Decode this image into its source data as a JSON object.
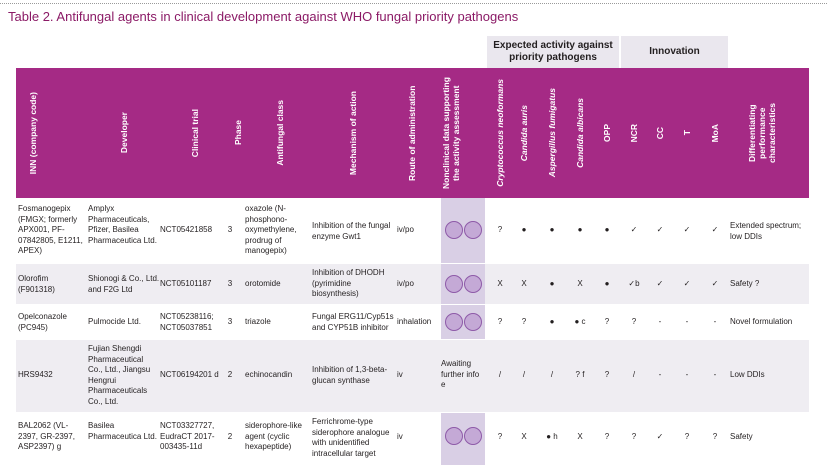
{
  "caption": "Table 2. Antifungal agents in clinical development against WHO fungal priority pathogens",
  "groups": {
    "expected": "Expected activity against priority pathogens",
    "innovation": "Innovation"
  },
  "columns": [
    "INN (company code)",
    "Developer",
    "Clinical trial",
    "Phase",
    "Antifungal class",
    "Mechanism of action",
    "Route of administration",
    "Nonclinical data supporting the activity assessment",
    "Cryptococcus neoformans",
    "Candida auris",
    "Aspergillus fumigatus",
    "Candida albicans",
    "OPP",
    "NCR",
    "CC",
    "T",
    "MoA",
    "Differentiating performance characteristics"
  ],
  "rows": [
    {
      "inn": "Fosmanogepix (FMGX; formerly APX001, PF-07842805, E1211, APEX)",
      "developer": "Amplyx Pharmaceuticals, Pfizer, Basilea Pharmaceutica Ltd.",
      "trial": "NCT05421858",
      "phase": "3",
      "class": "oxazole (N-phosphono-oxymethylene, prodrug of manogepix)",
      "moa": "Inhibition of the fungal enzyme Gwt1",
      "route": "iv/po",
      "nonclinical": "",
      "crypto": "?",
      "auris": "●",
      "asper": "●",
      "albicans": "●",
      "opp": "●",
      "ncr": "✓",
      "cc": "✓",
      "t": "✓",
      "moa_flag": "✓",
      "diff": "Extended spectrum; low DDIs"
    },
    {
      "inn": "Olorofim (F901318)",
      "developer": "Shionogi & Co., Ltd. and F2G Ltd",
      "trial": "NCT05101187",
      "phase": "3",
      "class": "orotomide",
      "moa": "Inhibition of DHODH (pyrimidine biosynthesis)",
      "route": "iv/po",
      "nonclinical": "",
      "crypto": "X",
      "auris": "X",
      "asper": "●",
      "albicans": "X",
      "opp": "●",
      "ncr": "✓b",
      "cc": "✓",
      "t": "✓",
      "moa_flag": "✓",
      "diff": "Safety ?"
    },
    {
      "inn": "Opelconazole (PC945)",
      "developer": "Pulmocide Ltd.",
      "trial": "NCT05238116; NCT05037851",
      "phase": "3",
      "class": "triazole",
      "moa": "Fungal ERG11/Cyp51s and CYP51B inhibitor",
      "route": "inhalation",
      "nonclinical": "",
      "crypto": "?",
      "auris": "?",
      "asper": "●",
      "albicans": "● c",
      "opp": "?",
      "ncr": "?",
      "cc": "-",
      "t": "-",
      "moa_flag": "-",
      "diff": "Novel formulation"
    },
    {
      "inn": "HRS9432",
      "developer": "Fujian Shengdi Pharmaceutical Co., Ltd., Jiangsu Hengrui Pharmaceuticals Co., Ltd.",
      "trial": "NCT06194201 d",
      "phase": "2",
      "class": "echinocandin",
      "moa": "Inhibition of 1,3-beta-glucan synthase",
      "route": "iv",
      "nonclinical": "Awaiting further info e",
      "crypto": "/",
      "auris": "/",
      "asper": "/",
      "albicans": "? f",
      "opp": "?",
      "ncr": "/",
      "cc": "-",
      "t": "-",
      "moa_flag": "-",
      "diff": "Low DDIs"
    },
    {
      "inn": "BAL2062 (VL-2397, GR-2397, ASP2397) g",
      "developer": "Basilea Pharmaceutica Ltd.",
      "trial": "NCT03327727, EudraCT 2017-003435-11d",
      "phase": "2",
      "class": "siderophore-like agent (cyclic hexapeptide)",
      "moa": "Ferrichrome-type siderophore analogue with unidentified intracellular target",
      "route": "iv",
      "nonclinical": "",
      "crypto": "?",
      "auris": "X",
      "asper": "● h",
      "albicans": "X",
      "opp": "?",
      "ncr": "?",
      "cc": "✓",
      "t": "?",
      "moa_flag": "?",
      "diff": "Safety"
    }
  ],
  "colors": {
    "header": "#a52a85",
    "group_band": "#eae7ee",
    "alt_row": "#efedf2",
    "nonclinical_bg": "#d9cfe5",
    "caption": "#8b1a66"
  }
}
